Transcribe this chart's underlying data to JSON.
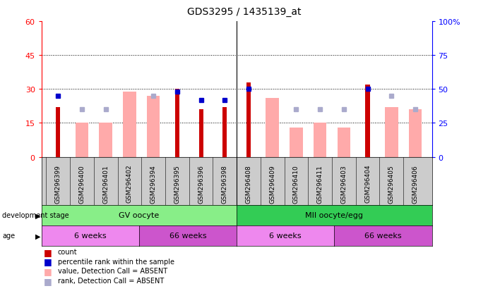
{
  "title": "GDS3295 / 1435139_at",
  "samples": [
    "GSM296399",
    "GSM296400",
    "GSM296401",
    "GSM296402",
    "GSM296394",
    "GSM296395",
    "GSM296396",
    "GSM296398",
    "GSM296408",
    "GSM296409",
    "GSM296410",
    "GSM296411",
    "GSM296403",
    "GSM296404",
    "GSM296405",
    "GSM296406"
  ],
  "count_values": [
    22,
    0,
    0,
    0,
    0,
    30,
    21,
    22,
    33,
    0,
    0,
    0,
    0,
    32,
    0,
    0
  ],
  "percentile_rank": [
    27,
    null,
    null,
    null,
    null,
    29,
    25,
    25,
    30,
    null,
    null,
    null,
    null,
    30,
    null,
    null
  ],
  "absent_value": [
    null,
    15,
    15,
    29,
    27,
    null,
    null,
    null,
    null,
    26,
    13,
    15,
    13,
    null,
    22,
    21
  ],
  "absent_rank": [
    null,
    21,
    21,
    null,
    27,
    null,
    null,
    null,
    null,
    null,
    21,
    21,
    21,
    null,
    27,
    21
  ],
  "ylim_left": [
    0,
    60
  ],
  "ylim_right": [
    0,
    100
  ],
  "yticks_left": [
    0,
    15,
    30,
    45,
    60
  ],
  "yticks_right": [
    0,
    25,
    50,
    75,
    100
  ],
  "count_color": "#cc0000",
  "percentile_color": "#0000cc",
  "absent_value_color": "#ffaaaa",
  "absent_rank_color": "#aaaacc",
  "development_stage_groups": [
    {
      "label": "GV oocyte",
      "start": 0,
      "end": 8,
      "color": "#88ee88"
    },
    {
      "label": "MII oocyte/egg",
      "start": 8,
      "end": 16,
      "color": "#33cc55"
    }
  ],
  "age_groups": [
    {
      "label": "6 weeks",
      "start": 0,
      "end": 4,
      "color": "#ee88ee"
    },
    {
      "label": "66 weeks",
      "start": 4,
      "end": 8,
      "color": "#cc55cc"
    },
    {
      "label": "6 weeks",
      "start": 8,
      "end": 12,
      "color": "#ee88ee"
    },
    {
      "label": "66 weeks",
      "start": 12,
      "end": 16,
      "color": "#cc55cc"
    }
  ],
  "legend_items": [
    {
      "label": "count",
      "color": "#cc0000"
    },
    {
      "label": "percentile rank within the sample",
      "color": "#0000cc"
    },
    {
      "label": "value, Detection Call = ABSENT",
      "color": "#ffaaaa"
    },
    {
      "label": "rank, Detection Call = ABSENT",
      "color": "#aaaacc"
    }
  ],
  "chart_bg": "#ffffff",
  "xticklabel_bg": "#cccccc"
}
